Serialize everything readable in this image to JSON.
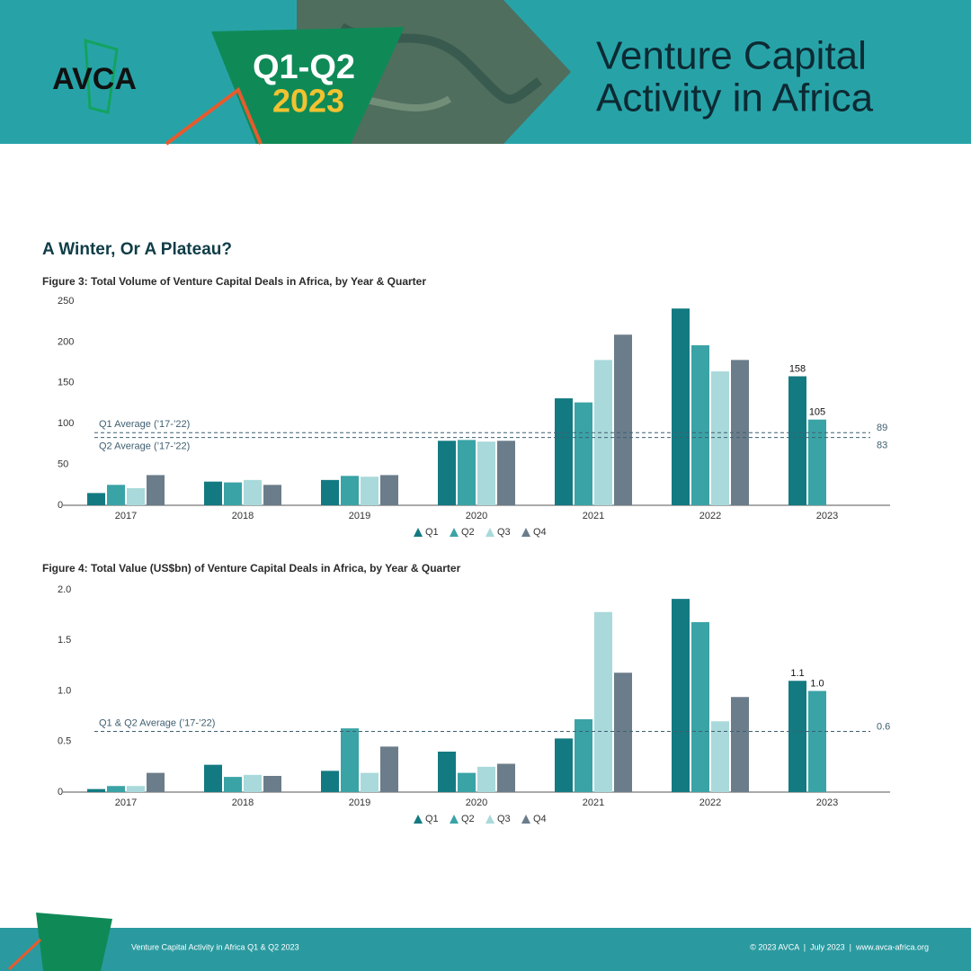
{
  "header": {
    "logo": "AVCA",
    "badge": [
      "Q1-Q2",
      "2023"
    ],
    "title": [
      "Venture Capital",
      "Activity in Africa"
    ]
  },
  "section_title": "A Winter, Or A Plateau?",
  "chart_data": [
    {
      "type": "bar",
      "title": "Figure 3: Total Volume of Venture Capital Deals in Africa, by Year & Quarter",
      "categories": [
        "2017",
        "2018",
        "2019",
        "2020",
        "2021",
        "2022",
        "2023"
      ],
      "series": [
        {
          "name": "Q1",
          "color": "#137a82",
          "values": [
            15,
            29,
            31,
            79,
            131,
            241,
            158
          ],
          "value_labels": [
            null,
            null,
            null,
            null,
            null,
            null,
            "158"
          ]
        },
        {
          "name": "Q2",
          "color": "#3aa3a6",
          "values": [
            25,
            28,
            36,
            80,
            126,
            196,
            105
          ],
          "value_labels": [
            null,
            null,
            null,
            null,
            null,
            null,
            "105"
          ]
        },
        {
          "name": "Q3",
          "color": "#a9d9da",
          "values": [
            21,
            31,
            35,
            78,
            178,
            164,
            null
          ]
        },
        {
          "name": "Q4",
          "color": "#6b7d8b",
          "values": [
            37,
            25,
            37,
            79,
            209,
            178,
            null
          ]
        }
      ],
      "ylim": [
        0,
        250
      ],
      "yticks": [
        0,
        50,
        100,
        150,
        200,
        250
      ],
      "reference_lines": [
        {
          "name": "Q1 Average (’17-’22)",
          "value": 89
        },
        {
          "name": "Q2 Average (’17-’22)",
          "value": 83
        }
      ],
      "legend": "bottom"
    },
    {
      "type": "bar",
      "title": "Figure 4: Total Value (US$bn) of Venture Capital Deals in Africa, by Year & Quarter",
      "categories": [
        "2017",
        "2018",
        "2019",
        "2020",
        "2021",
        "2022",
        "2023"
      ],
      "series": [
        {
          "name": "Q1",
          "color": "#137a82",
          "values": [
            0.03,
            0.27,
            0.21,
            0.4,
            0.53,
            1.91,
            1.1
          ],
          "value_labels": [
            null,
            null,
            null,
            null,
            null,
            null,
            "1.1"
          ]
        },
        {
          "name": "Q2",
          "color": "#3aa3a6",
          "values": [
            0.06,
            0.15,
            0.63,
            0.19,
            0.72,
            1.68,
            1.0
          ],
          "value_labels": [
            null,
            null,
            null,
            null,
            null,
            null,
            "1.0"
          ]
        },
        {
          "name": "Q3",
          "color": "#a9d9da",
          "values": [
            0.06,
            0.17,
            0.19,
            0.25,
            1.78,
            0.7,
            null
          ]
        },
        {
          "name": "Q4",
          "color": "#6b7d8b",
          "values": [
            0.19,
            0.16,
            0.45,
            0.28,
            1.18,
            0.94,
            null
          ]
        }
      ],
      "ylim": [
        0,
        2
      ],
      "yticks": [
        0,
        0.5,
        {
          "value": 1,
          "label": "1.0"
        },
        1.5,
        {
          "value": 2,
          "label": "2.0"
        }
      ],
      "reference_lines": [
        {
          "name": "Q1 & Q2 Average (’17-’22)",
          "value": 0.6
        }
      ],
      "legend": "bottom"
    }
  ],
  "footer": {
    "left": "Venture Capital Activity in Africa Q1 & Q2 2023",
    "right": "© 2023 AVCA  |  July 2023  |  www.avca-africa.org"
  }
}
